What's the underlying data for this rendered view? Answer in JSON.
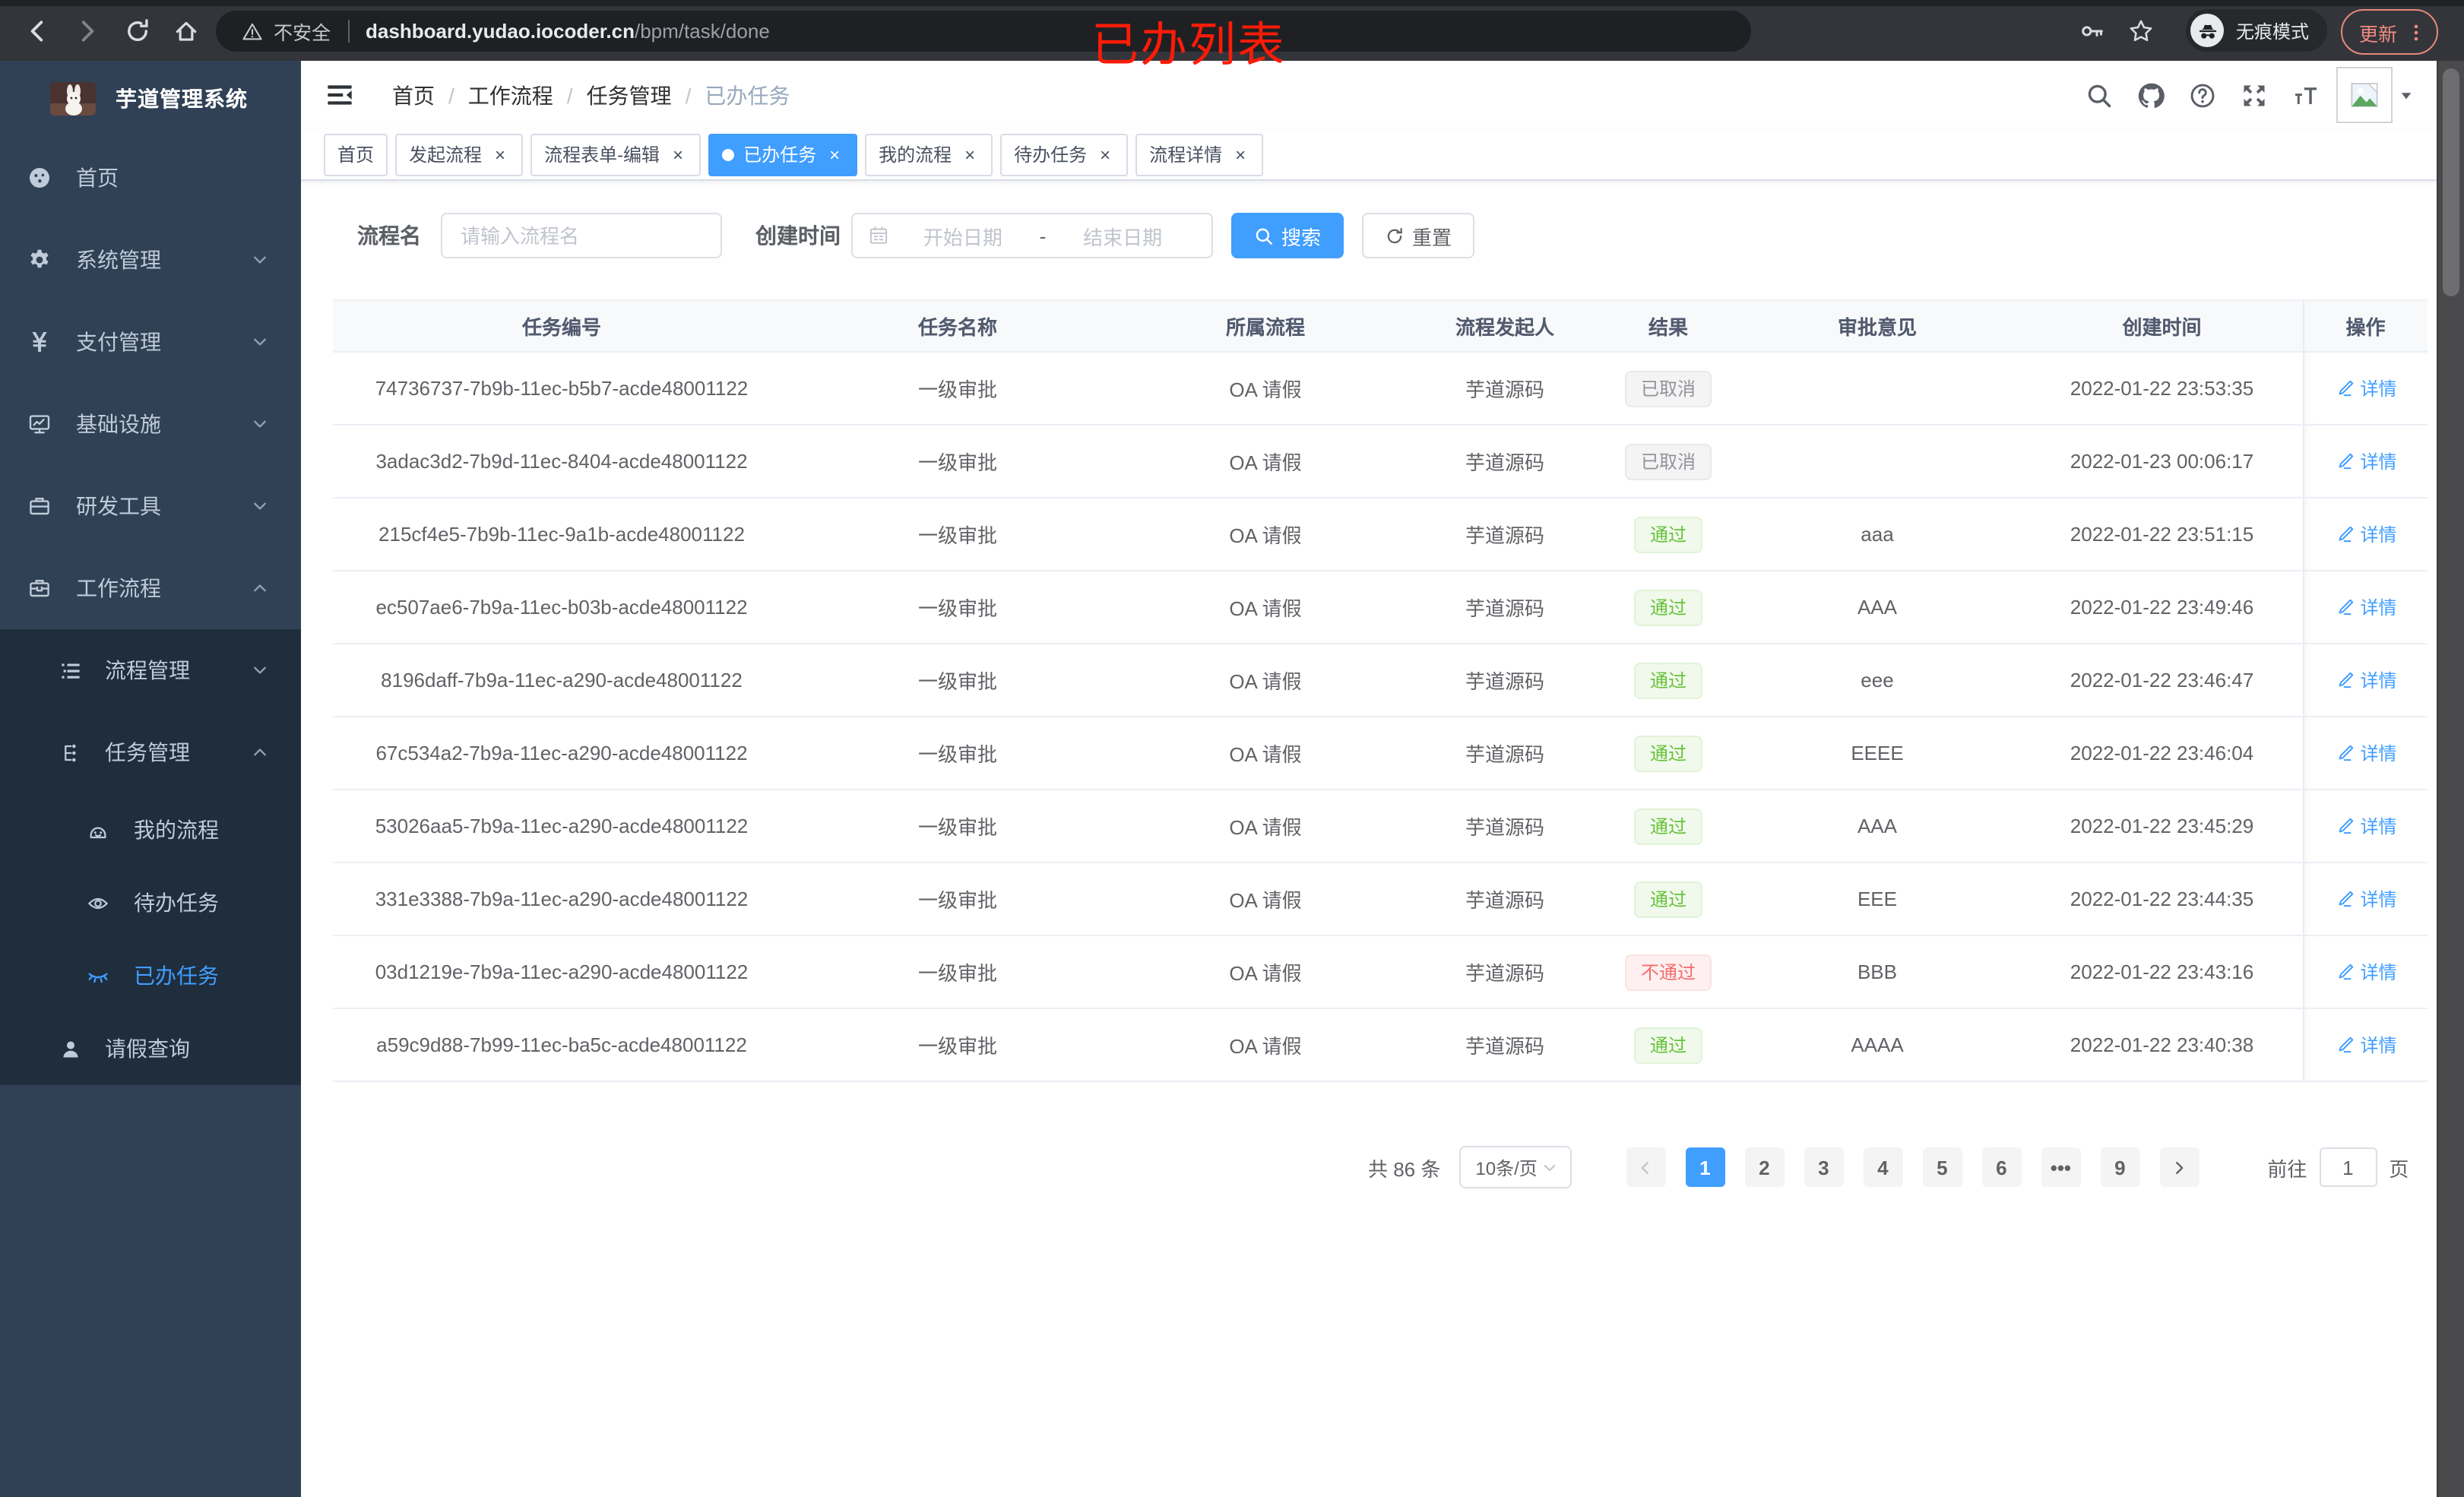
{
  "browser": {
    "security_label": "不安全",
    "url_host": "dashboard.yudao.iocoder.cn",
    "url_path": "/bpm/task/done",
    "incognito_label": "无痕模式",
    "update_label": "更新"
  },
  "annotation": {
    "text": "已办列表"
  },
  "colors": {
    "primary": "#409eff",
    "success": "#67c23a",
    "danger": "#f56c6c",
    "info": "#909399",
    "sidebar_bg": "#304156",
    "submenu_bg": "#1f2d3d"
  },
  "sidebar": {
    "logo_title": "芋道管理系统",
    "menu": [
      {
        "key": "home",
        "icon": "dashboard-icon",
        "label": "首页"
      },
      {
        "key": "system",
        "icon": "gear-icon",
        "label": "系统管理",
        "chevron": "down"
      },
      {
        "key": "payment",
        "icon": "yen-icon",
        "label": "支付管理",
        "chevron": "down"
      },
      {
        "key": "infrastructure",
        "icon": "monitor-icon",
        "label": "基础设施",
        "chevron": "down"
      },
      {
        "key": "devtools",
        "icon": "briefcase-icon",
        "label": "研发工具",
        "chevron": "down"
      },
      {
        "key": "workflow",
        "icon": "toolbox-icon",
        "label": "工作流程",
        "chevron": "up",
        "children": [
          {
            "key": "process-mgmt",
            "icon": "list-tree-icon",
            "label": "流程管理",
            "chevron": "down"
          },
          {
            "key": "task-mgmt",
            "icon": "tree-icon",
            "label": "任务管理",
            "chevron": "up",
            "children": [
              {
                "key": "my-process",
                "icon": "robot-icon",
                "label": "我的流程"
              },
              {
                "key": "todo-tasks",
                "icon": "eye-icon",
                "label": "待办任务"
              },
              {
                "key": "done-tasks",
                "icon": "eye-closed-icon",
                "label": "已办任务",
                "active": true
              }
            ]
          },
          {
            "key": "leave-query",
            "icon": "user-icon",
            "label": "请假查询",
            "small": true
          }
        ]
      }
    ]
  },
  "navbar": {
    "breadcrumb": [
      "首页",
      "工作流程",
      "任务管理",
      "已办任务"
    ]
  },
  "tabs": [
    {
      "label": "首页",
      "closable": false,
      "active": false
    },
    {
      "label": "发起流程",
      "closable": true,
      "active": false
    },
    {
      "label": "流程表单-编辑",
      "closable": true,
      "active": false
    },
    {
      "label": "已办任务",
      "closable": true,
      "active": true
    },
    {
      "label": "我的流程",
      "closable": true,
      "active": false
    },
    {
      "label": "待办任务",
      "closable": true,
      "active": false
    },
    {
      "label": "流程详情",
      "closable": true,
      "active": false
    }
  ],
  "filter": {
    "name_label": "流程名",
    "name_placeholder": "请输入流程名",
    "time_label": "创建时间",
    "start_placeholder": "开始日期",
    "range_separator": "-",
    "end_placeholder": "结束日期",
    "search_label": "搜索",
    "reset_label": "重置"
  },
  "table": {
    "columns": [
      "任务编号",
      "任务名称",
      "所属流程",
      "流程发起人",
      "结果",
      "审批意见",
      "创建时间",
      "操作"
    ],
    "action_label": "详情",
    "rows": [
      {
        "id": "74736737-7b9b-11ec-b5b7-acde48001122",
        "name": "一级审批",
        "process": "OA 请假",
        "starter": "芋道源码",
        "result": "已取消",
        "result_type": "cancel",
        "comment": "",
        "created": "2022-01-22 23:53:35"
      },
      {
        "id": "3adac3d2-7b9d-11ec-8404-acde48001122",
        "name": "一级审批",
        "process": "OA 请假",
        "starter": "芋道源码",
        "result": "已取消",
        "result_type": "cancel",
        "comment": "",
        "created": "2022-01-23 00:06:17"
      },
      {
        "id": "215cf4e5-7b9b-11ec-9a1b-acde48001122",
        "name": "一级审批",
        "process": "OA 请假",
        "starter": "芋道源码",
        "result": "通过",
        "result_type": "pass",
        "comment": "aaa",
        "created": "2022-01-22 23:51:15"
      },
      {
        "id": "ec507ae6-7b9a-11ec-b03b-acde48001122",
        "name": "一级审批",
        "process": "OA 请假",
        "starter": "芋道源码",
        "result": "通过",
        "result_type": "pass",
        "comment": "AAA",
        "created": "2022-01-22 23:49:46"
      },
      {
        "id": "8196daff-7b9a-11ec-a290-acde48001122",
        "name": "一级审批",
        "process": "OA 请假",
        "starter": "芋道源码",
        "result": "通过",
        "result_type": "pass",
        "comment": "eee",
        "created": "2022-01-22 23:46:47"
      },
      {
        "id": "67c534a2-7b9a-11ec-a290-acde48001122",
        "name": "一级审批",
        "process": "OA 请假",
        "starter": "芋道源码",
        "result": "通过",
        "result_type": "pass",
        "comment": "EEEE",
        "created": "2022-01-22 23:46:04"
      },
      {
        "id": "53026aa5-7b9a-11ec-a290-acde48001122",
        "name": "一级审批",
        "process": "OA 请假",
        "starter": "芋道源码",
        "result": "通过",
        "result_type": "pass",
        "comment": "AAA",
        "created": "2022-01-22 23:45:29"
      },
      {
        "id": "331e3388-7b9a-11ec-a290-acde48001122",
        "name": "一级审批",
        "process": "OA 请假",
        "starter": "芋道源码",
        "result": "通过",
        "result_type": "pass",
        "comment": "EEE",
        "created": "2022-01-22 23:44:35"
      },
      {
        "id": "03d1219e-7b9a-11ec-a290-acde48001122",
        "name": "一级审批",
        "process": "OA 请假",
        "starter": "芋道源码",
        "result": "不通过",
        "result_type": "fail",
        "comment": "BBB",
        "created": "2022-01-22 23:43:16"
      },
      {
        "id": "a59c9d88-7b99-11ec-ba5c-acde48001122",
        "name": "一级审批",
        "process": "OA 请假",
        "starter": "芋道源码",
        "result": "通过",
        "result_type": "pass",
        "comment": "AAAA",
        "created": "2022-01-22 23:40:38"
      }
    ]
  },
  "pagination": {
    "total_label": "共 86 条",
    "page_size": "10条/页",
    "pages": [
      "1",
      "2",
      "3",
      "4",
      "5",
      "6",
      "•••",
      "9"
    ],
    "active_page": "1",
    "goto_label": "前往",
    "goto_value": "1",
    "page_unit": "页"
  }
}
